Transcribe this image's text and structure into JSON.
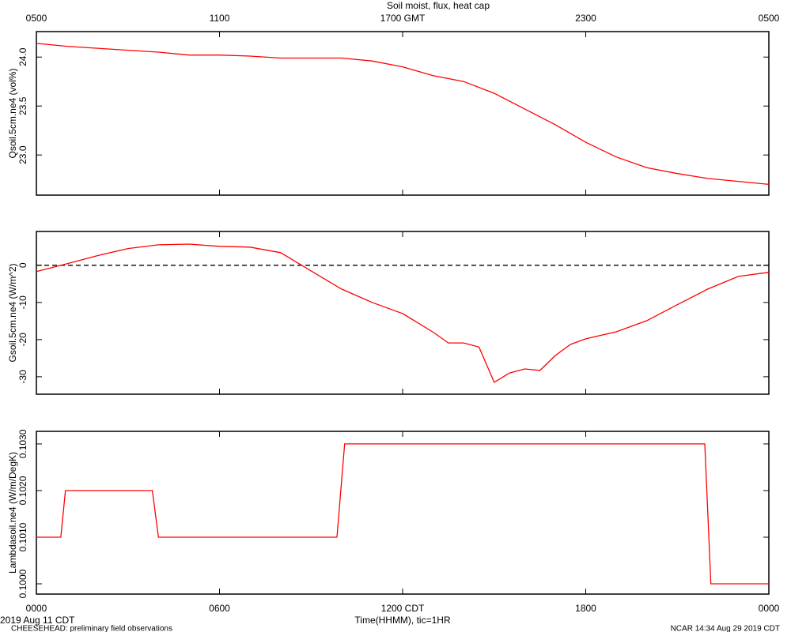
{
  "chart_data": [
    {
      "type": "line",
      "title": "Soil moist, flux, heat cap",
      "ylabel": "Qsoil.5cm.ne4 (vol%)",
      "color": "#ff0000",
      "xlim": [
        0,
        24
      ],
      "xticks": [
        0,
        6,
        12,
        18,
        24
      ],
      "x2ticks": [
        {
          "value": 0,
          "label": "0500"
        },
        {
          "value": 6,
          "label": "1100"
        },
        {
          "value": 12,
          "label": "1700 GMT"
        },
        {
          "value": 18,
          "label": "2300"
        },
        {
          "value": 24,
          "label": "0500"
        }
      ],
      "ylim": [
        22.59,
        24.26
      ],
      "yticks": [
        {
          "value": 23,
          "label": "23.0"
        },
        {
          "value": 23.5,
          "label": "23.5"
        },
        {
          "value": 24,
          "label": "24.0"
        }
      ],
      "x": [
        0,
        1,
        2,
        3,
        4,
        5,
        6,
        7,
        8,
        9,
        10,
        11,
        12,
        13,
        14,
        15,
        16,
        17,
        18,
        19,
        20,
        21,
        22,
        23,
        24
      ],
      "values": [
        24.14,
        24.11,
        24.09,
        24.07,
        24.05,
        24.02,
        24.02,
        24.01,
        23.99,
        23.99,
        23.99,
        23.96,
        23.9,
        23.81,
        23.75,
        23.63,
        23.47,
        23.31,
        23.13,
        22.98,
        22.87,
        22.81,
        22.76,
        22.73,
        22.7
      ]
    },
    {
      "type": "line",
      "ylabel": "Gsoil.5cm.ne4 (W/m^2)",
      "color": "#ff0000",
      "xlim": [
        0,
        24
      ],
      "xticks": [
        0,
        6,
        12,
        18,
        24
      ],
      "ylim": [
        -34.7,
        9.1
      ],
      "yticks": [
        -30,
        -20,
        -10,
        0
      ],
      "reference_line": 0,
      "x": [
        0,
        1,
        2,
        3,
        4,
        5,
        6,
        7,
        8,
        9,
        10,
        11,
        12,
        13,
        13.5,
        14,
        14.5,
        15,
        15.5,
        16,
        16.5,
        17,
        17.5,
        18,
        19,
        20,
        21,
        22,
        23,
        24
      ],
      "values": [
        -1.7,
        0.4,
        2.6,
        4.5,
        5.5,
        5.7,
        5.1,
        4.9,
        3.4,
        -1.5,
        -6.4,
        -10,
        -13,
        -18,
        -20.9,
        -20.9,
        -22,
        -31.5,
        -29,
        -27.9,
        -28.3,
        -24.3,
        -21.3,
        -19.8,
        -17.9,
        -14.9,
        -10.6,
        -6.4,
        -3,
        -1.9
      ]
    },
    {
      "type": "line",
      "ylabel": "Lambdasoil.ne4 (W/m/DegK)",
      "xlabel": "Time(HHMM), tic=1HR",
      "color": "#ff0000",
      "xlim": [
        0,
        24
      ],
      "xticks": [
        {
          "value": 0,
          "label": "0000"
        },
        {
          "value": 6,
          "label": "0600"
        },
        {
          "value": 12,
          "label": "1200 CDT"
        },
        {
          "value": 18,
          "label": "1800"
        },
        {
          "value": 24,
          "label": "0000"
        }
      ],
      "ylim": [
        0.09978,
        0.10327
      ],
      "yticks": [
        {
          "value": 0.1,
          "label": "0.1000"
        },
        {
          "value": 0.101,
          "label": "0.1010"
        },
        {
          "value": 0.102,
          "label": "0.1020"
        },
        {
          "value": 0.103,
          "label": "0.1030"
        }
      ],
      "x": [
        0,
        0.8,
        0.95,
        3.8,
        4.0,
        9.85,
        10.1,
        21.9,
        22.1,
        24
      ],
      "values": [
        0.101,
        0.101,
        0.102,
        0.102,
        0.101,
        0.101,
        0.103,
        0.103,
        0.1,
        0.1
      ]
    }
  ],
  "footer": {
    "date": "2019 Aug 11 CDT",
    "project": "CHEESEHEAD: preliminary field observations",
    "credit": "NCAR 14:34 Aug 29 2019 CDT"
  }
}
